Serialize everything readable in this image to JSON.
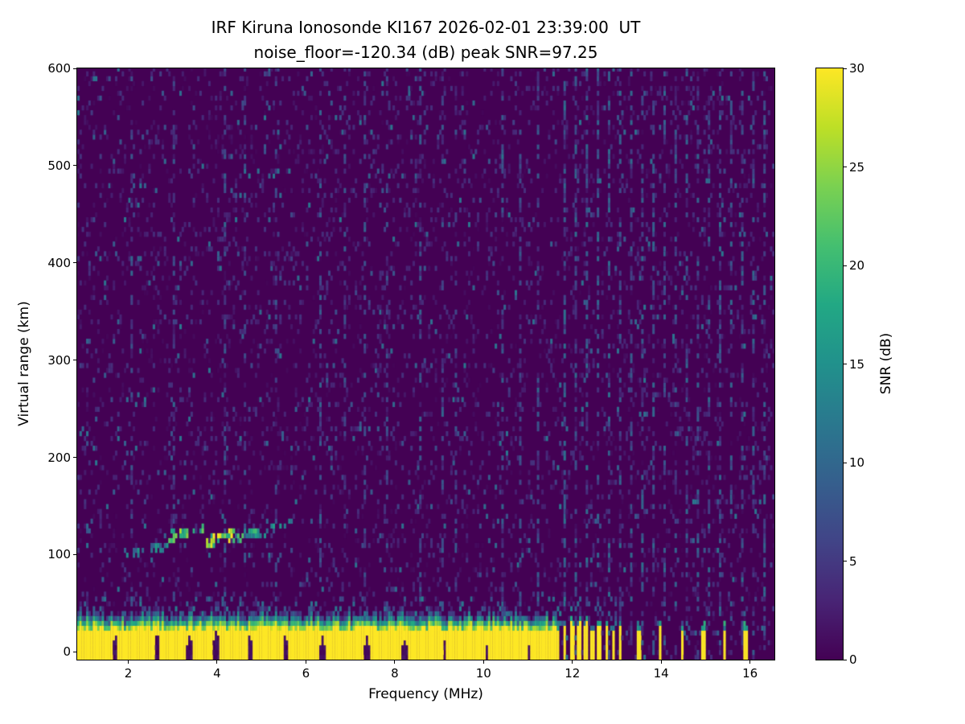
{
  "figure": {
    "bg": "#ffffff"
  },
  "chart_data": {
    "type": "heatmap",
    "title": "IRF Kiruna Ionosonde KI167 2026-02-01 23:39:00  UT",
    "subtitle": "noise_floor=-120.34 (dB) peak SNR=97.25",
    "xlabel": "Frequency (MHz)",
    "ylabel": "Virtual range (km)",
    "colorbar_label": "SNR (dB)",
    "xlim": [
      0.85,
      16.55
    ],
    "ylim": [
      -8,
      600
    ],
    "x_ticks": [
      2,
      4,
      6,
      8,
      10,
      12,
      14,
      16
    ],
    "y_ticks": [
      0,
      100,
      200,
      300,
      400,
      500,
      600
    ],
    "colorbar_ticks": [
      0,
      5,
      10,
      15,
      20,
      25,
      30
    ],
    "colorbar_range": [
      0,
      30
    ],
    "colormap": {
      "name": "viridis",
      "stops": [
        [
          0.0,
          "#440154"
        ],
        [
          0.1,
          "#482475"
        ],
        [
          0.2,
          "#414487"
        ],
        [
          0.3,
          "#355f8d"
        ],
        [
          0.4,
          "#2a788e"
        ],
        [
          0.5,
          "#21918c"
        ],
        [
          0.6,
          "#22a884"
        ],
        [
          0.7,
          "#44bf70"
        ],
        [
          0.8,
          "#7ad151"
        ],
        [
          0.9,
          "#bddf26"
        ],
        [
          1.0,
          "#fde725"
        ]
      ]
    },
    "seed": 20260201,
    "grid": {
      "df": 0.05,
      "dr": 5
    },
    "noise": {
      "p_faint": 0.13,
      "faint_max": 4.5,
      "p_bright": 0.02,
      "bright_min": 5,
      "bright_max": 12
    },
    "noise_stripes": [
      [
        2.05,
        0.3
      ],
      [
        3.0,
        0.25
      ],
      [
        4.15,
        0.45
      ],
      [
        4.6,
        0.25
      ],
      [
        5.3,
        0.35
      ],
      [
        6.3,
        0.5
      ],
      [
        6.85,
        0.3
      ],
      [
        7.3,
        0.45
      ],
      [
        7.8,
        0.3
      ],
      [
        8.55,
        0.45
      ],
      [
        9.05,
        0.35
      ],
      [
        9.35,
        0.3
      ],
      [
        10.4,
        0.45
      ],
      [
        10.8,
        0.3
      ],
      [
        11.2,
        0.4
      ],
      [
        11.8,
        0.8
      ],
      [
        12.05,
        0.65
      ],
      [
        12.3,
        0.75
      ],
      [
        12.55,
        0.65
      ],
      [
        12.8,
        0.75
      ],
      [
        13.05,
        0.6
      ],
      [
        13.3,
        0.65
      ],
      [
        13.55,
        0.6
      ],
      [
        13.8,
        0.6
      ],
      [
        14.05,
        0.65
      ],
      [
        14.3,
        0.55
      ],
      [
        14.55,
        0.6
      ],
      [
        14.8,
        0.55
      ],
      [
        15.05,
        0.65
      ],
      [
        15.3,
        0.55
      ],
      [
        15.55,
        0.6
      ],
      [
        15.8,
        0.55
      ],
      [
        16.05,
        0.6
      ],
      [
        16.3,
        0.6
      ]
    ],
    "ground_band": {
      "f_end": 11.62,
      "top": 22,
      "jitter": 9,
      "green_depth": 14,
      "halo_top": 55,
      "halo_prob": 0.1,
      "notch_min": 3,
      "notches": [
        [
          1.68,
          16,
          0.05
        ],
        [
          2.62,
          18,
          0.05
        ],
        [
          3.36,
          16,
          0.05
        ],
        [
          3.96,
          20,
          0.06
        ],
        [
          4.72,
          17,
          0.05
        ],
        [
          5.52,
          15,
          0.05
        ],
        [
          6.35,
          17,
          0.05
        ],
        [
          7.35,
          15,
          0.05
        ],
        [
          8.2,
          9,
          0.05
        ],
        [
          9.1,
          8,
          0.05
        ],
        [
          10.05,
          7,
          0.05
        ],
        [
          11.0,
          7,
          0.05
        ]
      ]
    },
    "interference": {
      "barcode": {
        "f0": 11.62,
        "f1": 13.08,
        "period": 0.155,
        "duty": 0.48,
        "height": 26
      },
      "columns": [
        [
          13.47,
          0.07,
          20
        ],
        [
          13.95,
          0.07,
          21
        ],
        [
          14.45,
          0.07,
          20
        ],
        [
          14.92,
          0.07,
          21
        ],
        [
          15.4,
          0.07,
          20
        ],
        [
          15.87,
          0.07,
          19
        ]
      ]
    },
    "sporadic_e_trace": {
      "segments": [
        [
          1.85,
          2.35,
          98,
          102,
          13,
          4,
          0.5
        ],
        [
          2.35,
          2.85,
          102,
          107,
          14,
          4,
          0.55
        ],
        [
          2.85,
          3.18,
          113,
          123,
          27,
          6,
          0.8
        ],
        [
          3.18,
          3.65,
          119,
          126,
          19,
          5,
          0.65
        ],
        [
          3.7,
          4.35,
          109,
          118,
          27,
          6,
          0.85
        ],
        [
          4.35,
          4.85,
          114,
          122,
          17,
          5,
          0.6
        ],
        [
          4.85,
          5.45,
          118,
          127,
          14,
          4,
          0.55
        ],
        [
          5.45,
          5.68,
          127,
          132,
          11,
          3,
          0.45
        ]
      ]
    }
  }
}
